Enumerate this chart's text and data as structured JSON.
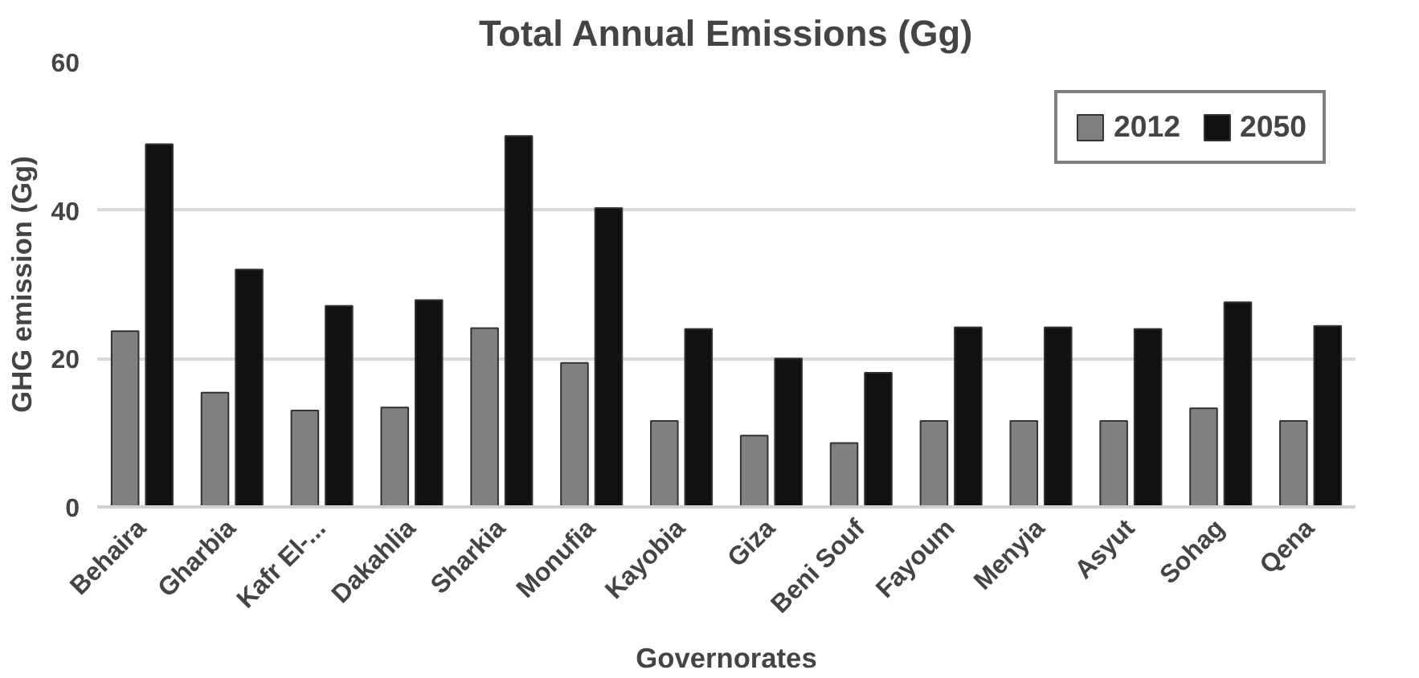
{
  "chart_data": {
    "type": "bar",
    "title": "Total Annual Emissions (Gg)",
    "xlabel": "Governorates",
    "ylabel": "GHG emission (Gg)",
    "categories": [
      "Behaira",
      "Gharbia",
      "Kafr El-...",
      "Dakahlia",
      "Sharkia",
      "Monufia",
      "Kayobia",
      "Giza",
      "Beni Souf",
      "Fayoum",
      "Menyia",
      "Asyut",
      "Sohag",
      "Qena"
    ],
    "series": [
      {
        "name": "2012",
        "color": "#808080",
        "values": [
          23.7,
          15.4,
          13.0,
          13.4,
          24.1,
          19.4,
          11.6,
          9.6,
          8.6,
          11.6,
          11.6,
          11.6,
          13.3,
          11.6
        ]
      },
      {
        "name": "2050",
        "color": "#111111",
        "values": [
          48.9,
          32.0,
          27.1,
          27.9,
          50.0,
          40.3,
          24.0,
          20.0,
          18.1,
          24.2,
          24.2,
          24.0,
          27.6,
          24.4
        ]
      }
    ],
    "ylim": [
      0,
      60
    ],
    "yticks": [
      0,
      20,
      40,
      60
    ],
    "grid": "y",
    "legend": "top right"
  }
}
